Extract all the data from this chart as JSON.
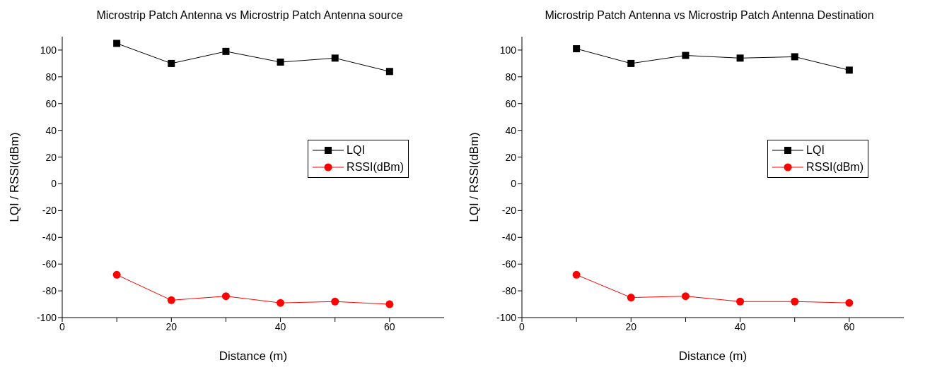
{
  "chart_data": [
    {
      "type": "line",
      "title": "Microstrip Patch Antenna vs Microstrip Patch Antenna source",
      "xlabel": "Distance (m)",
      "ylabel": "LQI / RSSI(dBm)",
      "x": [
        10,
        20,
        30,
        40,
        50,
        60
      ],
      "series": [
        {
          "name": "LQI",
          "color": "#000000",
          "marker": "square",
          "values": [
            105,
            90,
            99,
            91,
            94,
            84
          ]
        },
        {
          "name": "RSSI(dBm)",
          "color": "#ff0000",
          "marker": "circle",
          "values": [
            -68,
            -87,
            -84,
            -89,
            -88,
            -90
          ]
        }
      ],
      "xlim": [
        0,
        70
      ],
      "xticks": [
        0,
        {
          "value": 10,
          "label": null
        },
        20,
        {
          "value": 30,
          "label": null
        },
        40,
        {
          "value": 50,
          "label": null
        },
        60
      ],
      "ylim": [
        -100,
        110
      ],
      "yticks": [
        -100,
        -80,
        -60,
        -40,
        -20,
        0,
        20,
        40,
        60,
        80,
        100
      ],
      "grid": false,
      "legend": "right"
    },
    {
      "type": "line",
      "title": "Microstrip Patch Antenna vs Microstrip Patch Antenna Destination",
      "xlabel": "Distance (m)",
      "ylabel": "LQI / RSSI(dBm)",
      "x": [
        10,
        20,
        30,
        40,
        50,
        60
      ],
      "series": [
        {
          "name": "LQI",
          "color": "#000000",
          "marker": "square",
          "values": [
            101,
            90,
            96,
            94,
            95,
            85
          ]
        },
        {
          "name": "RSSI(dBm)",
          "color": "#ff0000",
          "marker": "circle",
          "values": [
            -68,
            -85,
            -84,
            -88,
            -88,
            -89
          ]
        }
      ],
      "xlim": [
        0,
        70
      ],
      "xticks": [
        0,
        {
          "value": 10,
          "label": null
        },
        20,
        {
          "value": 30,
          "label": null
        },
        40,
        {
          "value": 50,
          "label": null
        },
        60
      ],
      "ylim": [
        -100,
        110
      ],
      "yticks": [
        -100,
        -80,
        -60,
        -40,
        -20,
        0,
        20,
        40,
        60,
        80,
        100
      ],
      "grid": false,
      "legend": "right"
    }
  ]
}
